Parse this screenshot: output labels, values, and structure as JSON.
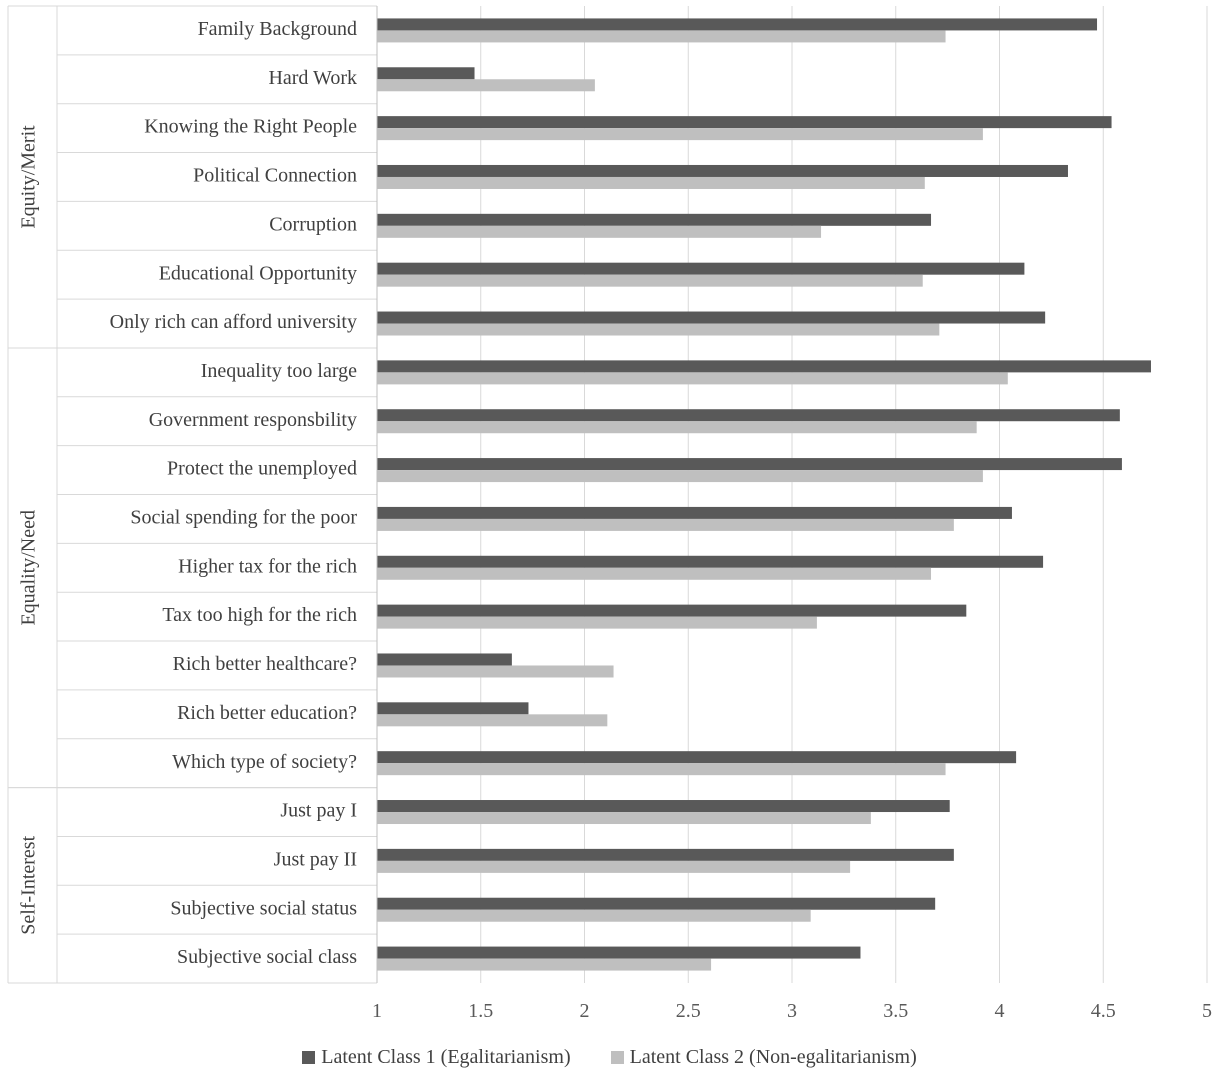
{
  "chart_data": {
    "type": "bar",
    "orientation": "horizontal",
    "categories": [
      "Family Background",
      "Hard Work",
      "Knowing the Right People",
      "Political Connection",
      "Corruption",
      "Educational Opportunity",
      "Only rich can afford university",
      "Inequality too large",
      "Government responsbility",
      "Protect the unemployed",
      "Social spending for the poor",
      "Higher tax for the rich",
      "Tax too high for the rich",
      "Rich better healthcare?",
      "Rich better education?",
      "Which type of society?",
      "Just pay I",
      "Just pay II",
      "Subjective social status",
      "Subjective social class"
    ],
    "groups": [
      {
        "name": "Equity/Merit",
        "start": 0,
        "end": 6
      },
      {
        "name": "Equality/Need",
        "start": 7,
        "end": 15
      },
      {
        "name": "Self-Interest",
        "start": 16,
        "end": 19
      }
    ],
    "series": [
      {
        "name": "Latent Class 1 (Egalitarianism)",
        "color": "#595959",
        "values": [
          4.47,
          1.47,
          4.54,
          4.33,
          3.67,
          4.12,
          4.22,
          4.73,
          4.58,
          4.59,
          4.06,
          4.21,
          3.84,
          1.65,
          1.73,
          4.08,
          3.76,
          3.78,
          3.69,
          3.33
        ]
      },
      {
        "name": "Latent Class 2 (Non-egalitarianism)",
        "color": "#bfbfbf",
        "values": [
          3.74,
          2.05,
          3.92,
          3.64,
          3.14,
          3.63,
          3.71,
          4.04,
          3.89,
          3.92,
          3.78,
          3.67,
          3.12,
          2.14,
          2.11,
          3.74,
          3.38,
          3.28,
          3.09,
          2.61
        ]
      }
    ],
    "xlim": [
      1,
      5
    ],
    "xticks": [
      "1",
      "1.5",
      "2",
      "2.5",
      "3",
      "3.5",
      "4",
      "4.5",
      "5"
    ],
    "grid": true,
    "legend_position": "bottom"
  }
}
